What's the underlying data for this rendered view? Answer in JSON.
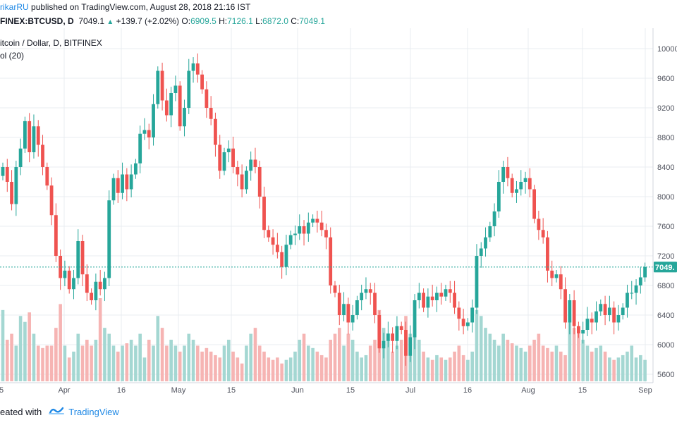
{
  "header": {
    "author": "rikarRU",
    "published_text": "published on TradingView.com, August 28, 2018 21:16 IST"
  },
  "ohlc": {
    "symbol": "FINEX:BTCUSD, D",
    "last": "7049.1",
    "change": "+139.7 (+2.02%)",
    "o_label": "O:",
    "o": "6909.5",
    "h_label": "H:",
    "h": "7126.1",
    "l_label": "L:",
    "l": "6872.0",
    "c_label": "C:",
    "c": "7049.1"
  },
  "legend": {
    "series_title": "itcoin / Dollar, D, BITFINEX",
    "volume_title": "ol (20)"
  },
  "footer": {
    "created_with": "eated with",
    "brand": "TradingView"
  },
  "colors": {
    "up": "#26a69a",
    "down": "#ef5350",
    "vol_up": "#a4d7d2",
    "vol_down": "#f6b4b3",
    "grid": "#e9ecf0",
    "price_line": "#26a69a"
  },
  "chart_data": {
    "type": "candlestick",
    "title": "itcoin / Dollar, D, BITFINEX",
    "x_tick_labels": [
      "5",
      "Apr",
      "16",
      "May",
      "15",
      "Jun",
      "15",
      "Jul",
      "16",
      "Aug",
      "15",
      "Sep"
    ],
    "y_tick_labels": [
      "10000",
      "9600",
      "9200",
      "8800",
      "8400",
      "8000",
      "7600",
      "7200",
      "6800",
      "6400",
      "6000",
      "5600"
    ],
    "ylim": [
      5550,
      10150
    ],
    "last_price_label": "7049.",
    "last_price": 7049.1,
    "grid": true,
    "series": [
      {
        "name": "BTCUSD",
        "close": [
          8400,
          8200,
          7900,
          8400,
          8650,
          9020,
          8600,
          8950,
          8700,
          8400,
          8150,
          7750,
          7200,
          6900,
          7000,
          6750,
          6900,
          7400,
          6950,
          6700,
          6600,
          6850,
          6750,
          6900,
          7950,
          8250,
          8050,
          8300,
          8100,
          8300,
          8450,
          8850,
          8900,
          8800,
          9250,
          9700,
          9300,
          9100,
          9400,
          9500,
          8950,
          9200,
          9700,
          9800,
          9650,
          9450,
          9200,
          9050,
          8700,
          8350,
          8600,
          8650,
          8400,
          8300,
          8100,
          8350,
          8500,
          8400,
          8000,
          7550,
          7450,
          7350,
          7250,
          7050,
          7350,
          7480,
          7500,
          7600,
          7500,
          7650,
          7700,
          7650,
          7550,
          7450,
          6800,
          6700,
          6400,
          6550,
          6300,
          6400,
          6600,
          6700,
          6750,
          6700,
          6400,
          5950,
          6050,
          6150,
          6050,
          6250,
          6200,
          5850,
          6100,
          6600,
          6700,
          6500,
          6650,
          6600,
          6700,
          6650,
          6750,
          6700,
          6500,
          6350,
          6250,
          6300,
          6500,
          7200,
          7300,
          7450,
          7600,
          7800,
          8200,
          8400,
          8250,
          8050,
          8100,
          8200,
          8250,
          8100,
          7700,
          7550,
          7450,
          7000,
          6900,
          6950,
          6750,
          6300,
          6600,
          6250,
          6150,
          6200,
          6350,
          6300,
          6450,
          6550,
          6400,
          6500,
          6300,
          6400,
          6500,
          6700,
          6700,
          6800,
          6909.5,
          7049.1
        ],
        "volume": [
          60,
          35,
          40,
          30,
          55,
          50,
          58,
          40,
          30,
          28,
          30,
          30,
          45,
          65,
          30,
          20,
          25,
          40,
          30,
          35,
          30,
          35,
          70,
          45,
          40,
          30,
          25,
          30,
          32,
          35,
          30,
          40,
          20,
          35,
          30,
          55,
          45,
          30,
          35,
          30,
          25,
          30,
          40,
          35,
          30,
          25,
          28,
          25,
          22,
          20,
          30,
          35,
          25,
          20,
          15,
          30,
          40,
          45,
          30,
          25,
          20,
          18,
          20,
          15,
          18,
          20,
          25,
          35,
          40,
          30,
          28,
          25,
          22,
          20,
          35,
          40,
          45,
          30,
          40,
          35,
          25,
          20,
          22,
          30,
          35,
          60,
          45,
          35,
          25,
          30,
          35,
          55,
          40,
          50,
          35,
          25,
          20,
          18,
          22,
          20,
          18,
          20,
          25,
          30,
          22,
          18,
          25,
          60,
          55,
          45,
          40,
          35,
          30,
          40,
          35,
          32,
          30,
          28,
          25,
          30,
          35,
          40,
          30,
          28,
          25,
          30,
          25,
          22,
          55,
          45,
          40,
          35,
          30,
          25,
          28,
          30,
          25,
          20,
          18,
          20,
          22,
          25,
          30,
          20,
          22,
          18
        ]
      }
    ]
  }
}
